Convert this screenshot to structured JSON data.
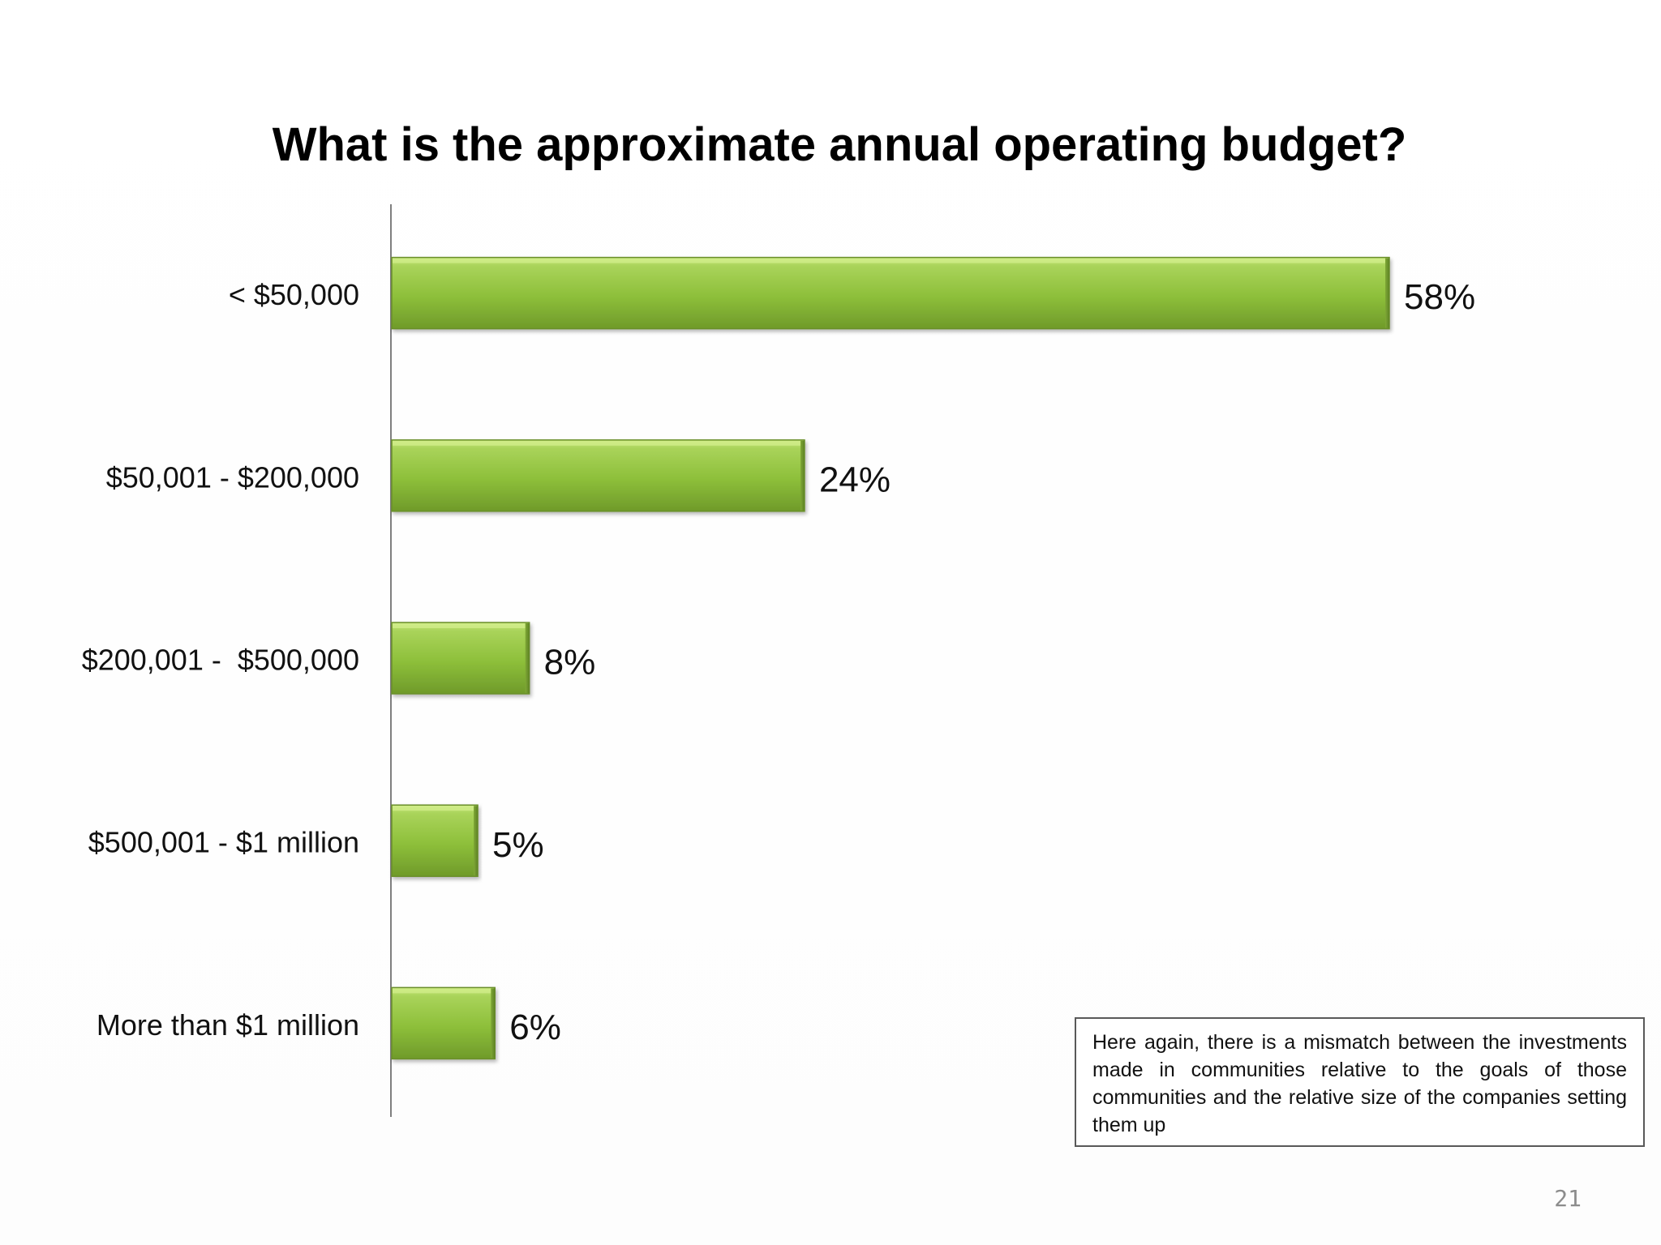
{
  "chart_data": {
    "type": "bar",
    "orientation": "horizontal",
    "title": "What is the approximate annual operating budget?",
    "categories": [
      "< $50,000",
      "$50,001 - $200,000",
      "$200,001 -  $500,000",
      "$500,001 - $1 million",
      "More than $1 million"
    ],
    "values": [
      58,
      24,
      8,
      5,
      6
    ],
    "value_labels": [
      "58%",
      "24%",
      "8%",
      "5%",
      "6%"
    ],
    "unit": "%",
    "xlabel": "",
    "ylabel": "",
    "xlim": [
      0,
      62
    ],
    "grid": false,
    "legend": "none",
    "bar_color": "#8dbf3a"
  },
  "note": {
    "text": "Here again, there is a mismatch between the investments made in communities relative to the goals of those communities and the relative size of the companies setting them up"
  },
  "page": {
    "number": "21"
  }
}
